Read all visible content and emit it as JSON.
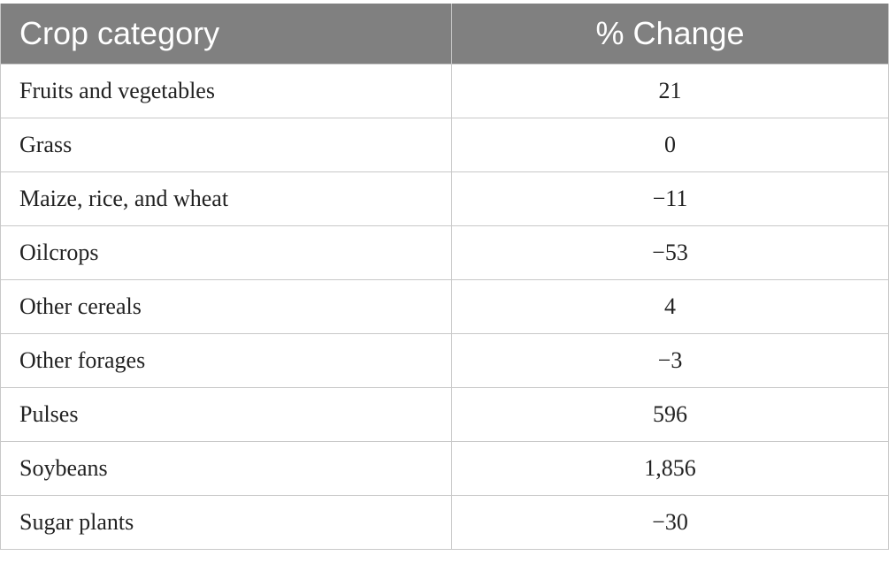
{
  "table": {
    "headers": [
      "Crop category",
      "% Change"
    ],
    "rows": [
      {
        "crop": "Fruits and vegetables",
        "change": "21"
      },
      {
        "crop": "Grass",
        "change": "0"
      },
      {
        "crop": "Maize, rice, and wheat",
        "change": "−11"
      },
      {
        "crop": "Oilcrops",
        "change": "−53"
      },
      {
        "crop": "Other cereals",
        "change": "4"
      },
      {
        "crop": "Other forages",
        "change": "−3"
      },
      {
        "crop": "Pulses",
        "change": "596"
      },
      {
        "crop": "Soybeans",
        "change": "1,856"
      },
      {
        "crop": "Sugar plants",
        "change": "−30"
      }
    ]
  },
  "colors": {
    "header_background": "#808080",
    "header_text": "#ffffff",
    "grid_line": "#c8c8c8",
    "body_text": "#222222"
  }
}
